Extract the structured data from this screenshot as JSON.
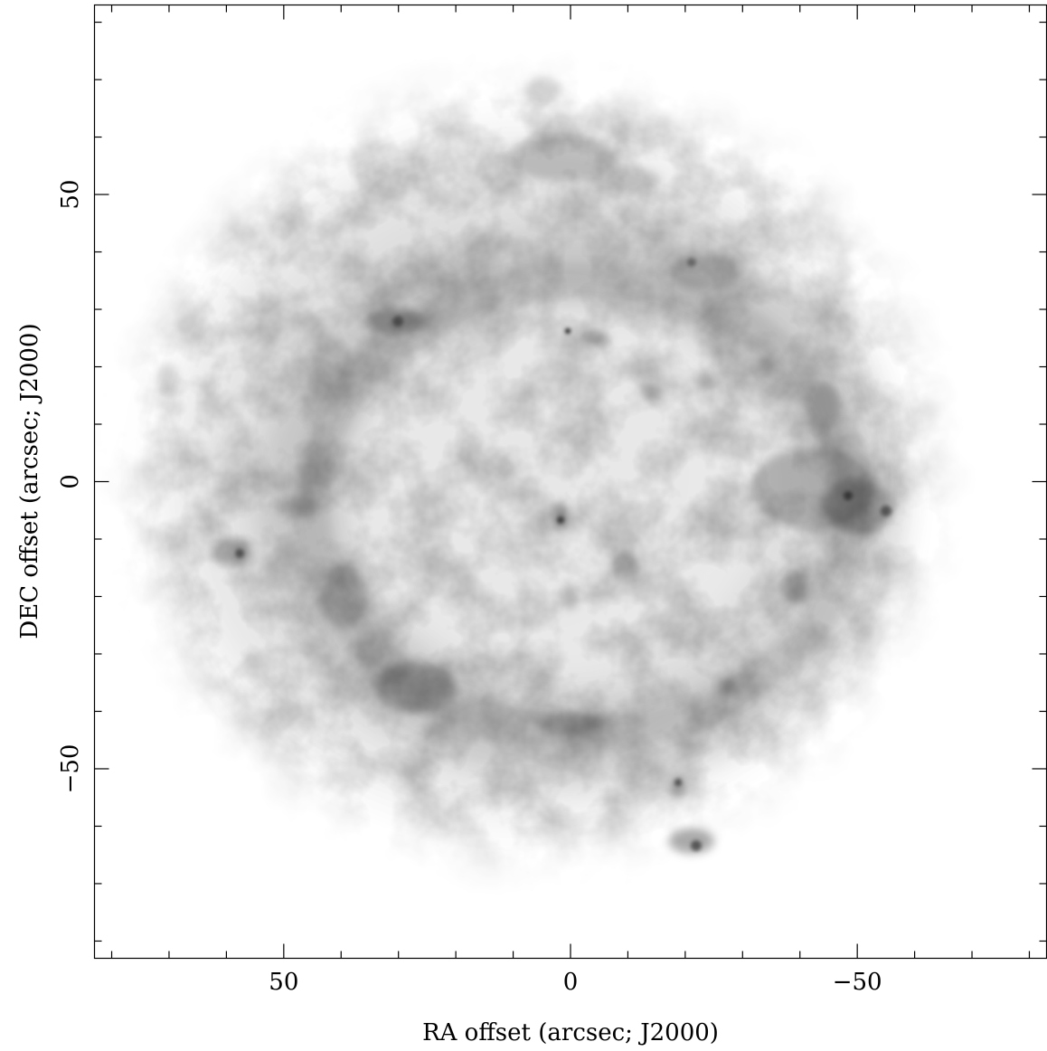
{
  "image": {
    "description": "Greyscale (inverted) astronomical image of a roughly circular supernova remnant shell with darker knots and filaments along the rim",
    "colormap": "inverted greyscale"
  },
  "axes": {
    "xlabel": "RA offset (arcsec; J2000)",
    "ylabel": "DEC offset (arcsec; J2000)",
    "xlim": [
      83,
      -83
    ],
    "ylim": [
      -83,
      83
    ],
    "x_ticks_major": [
      {
        "value": 50,
        "label": "50"
      },
      {
        "value": 0,
        "label": "0"
      },
      {
        "value": -50,
        "label": "−50"
      }
    ],
    "y_ticks_major": [
      {
        "value": 50,
        "label": "50"
      },
      {
        "value": 0,
        "label": "0"
      },
      {
        "value": -50,
        "label": "−50"
      }
    ],
    "minor_tick_step": 10
  }
}
